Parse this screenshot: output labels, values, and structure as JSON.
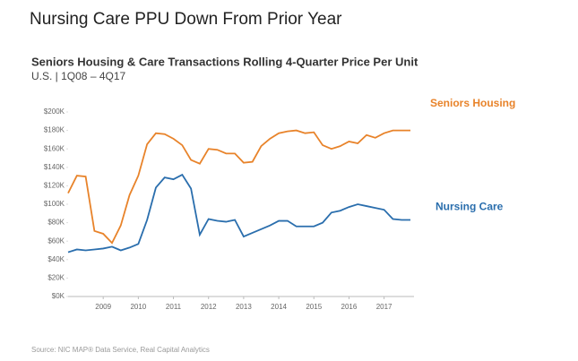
{
  "chart_data": {
    "type": "line",
    "title": "Nursing  Care PPU Down From Prior Year",
    "subtitle": "Seniors Housing & Care Transactions Rolling 4-Quarter Price Per Unit",
    "subtitle2": "U.S. | 1Q08 – 4Q17",
    "source": "Source:  NIC MAP® Data Service,  Real Capital Analytics",
    "x": [
      2008,
      2008.25,
      2008.5,
      2008.75,
      2009,
      2009.25,
      2009.5,
      2009.75,
      2010,
      2010.25,
      2010.5,
      2010.75,
      2011,
      2011.25,
      2011.5,
      2011.75,
      2012,
      2012.25,
      2012.5,
      2012.75,
      2013,
      2013.25,
      2013.5,
      2013.75,
      2014,
      2014.25,
      2014.5,
      2014.75,
      2015,
      2015.25,
      2015.5,
      2015.75,
      2016,
      2016.25,
      2016.5,
      2016.75,
      2017,
      2017.25,
      2017.5,
      2017.75
    ],
    "xlim": [
      2008,
      2017.75
    ],
    "xticks": [
      2009,
      2010,
      2011,
      2012,
      2013,
      2014,
      2015,
      2016,
      2017
    ],
    "ylim": [
      0,
      200000
    ],
    "yticks": [
      {
        "value": 0,
        "label": "$0K"
      },
      {
        "value": 20000,
        "label": "$20K"
      },
      {
        "value": 40000,
        "label": "$40K"
      },
      {
        "value": 60000,
        "label": "$60K"
      },
      {
        "value": 80000,
        "label": "$80K"
      },
      {
        "value": 100000,
        "label": "$100K"
      },
      {
        "value": 120000,
        "label": "$120K"
      },
      {
        "value": 140000,
        "label": "$140K"
      },
      {
        "value": 160000,
        "label": "$160K"
      },
      {
        "value": 180000,
        "label": "$180K"
      },
      {
        "value": 200000,
        "label": "$200K"
      }
    ],
    "grid": false,
    "series": [
      {
        "name": "Seniors Housing",
        "color": "#e8832a",
        "values": [
          112000,
          131000,
          130000,
          71000,
          68000,
          58000,
          77000,
          110000,
          131000,
          165000,
          177000,
          176000,
          171000,
          164000,
          148000,
          144000,
          160000,
          159000,
          155000,
          155000,
          145000,
          146000,
          163000,
          171000,
          177000,
          179000,
          180000,
          177000,
          178000,
          164000,
          160000,
          163000,
          168000,
          166000,
          175000,
          172000,
          177000,
          180000,
          180000,
          180000
        ]
      },
      {
        "name": "Nursing Care",
        "color": "#2a6ead",
        "values": [
          48000,
          51000,
          50000,
          51000,
          52000,
          54000,
          50000,
          53000,
          57000,
          83000,
          118000,
          129000,
          127000,
          132000,
          117000,
          67000,
          84000,
          82000,
          81000,
          83000,
          65000,
          69000,
          73000,
          77000,
          82000,
          82000,
          76000,
          76000,
          76000,
          80000,
          91000,
          93000,
          97000,
          100000,
          98000,
          96000,
          94000,
          84000,
          83000,
          83000
        ]
      }
    ]
  }
}
